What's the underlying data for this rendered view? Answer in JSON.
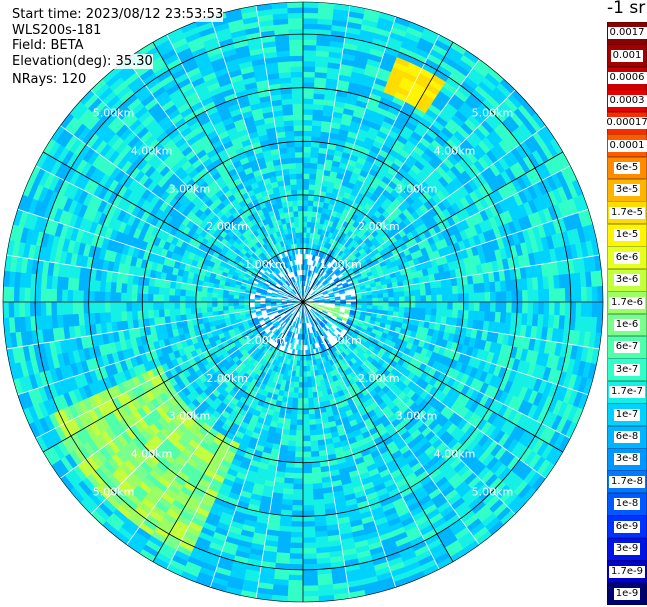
{
  "info": {
    "start_time": "Start time: 2023/08/12 23:53:53",
    "instrument": "WLS200s-181",
    "field": "Field: BETA",
    "elevation": "Elevation(deg): 35.30",
    "nrays": "NRays: 120"
  },
  "colorbar": {
    "unit_label": "-1 sr",
    "entries": [
      {
        "label": "0.0017",
        "color": "#8b0000"
      },
      {
        "label": "0.001",
        "color": "#a00000"
      },
      {
        "label": "0.0006",
        "color": "#c80000"
      },
      {
        "label": "0.0003",
        "color": "#e60000"
      },
      {
        "label": "0.00017",
        "color": "#ff2a00"
      },
      {
        "label": "0.0001",
        "color": "#ff5a00"
      },
      {
        "label": "6e-5",
        "color": "#ff8c00"
      },
      {
        "label": "3e-5",
        "color": "#ffb400"
      },
      {
        "label": "1.7e-5",
        "color": "#ffdc00"
      },
      {
        "label": "1e-5",
        "color": "#fff500"
      },
      {
        "label": "6e-6",
        "color": "#e6ff1e"
      },
      {
        "label": "3e-6",
        "color": "#c3ff3c"
      },
      {
        "label": "1.7e-6",
        "color": "#9bff64"
      },
      {
        "label": "1e-6",
        "color": "#78ff8c"
      },
      {
        "label": "6e-7",
        "color": "#50ffaa"
      },
      {
        "label": "3e-7",
        "color": "#32ffc8"
      },
      {
        "label": "1.7e-7",
        "color": "#14f0e6"
      },
      {
        "label": "1e-7",
        "color": "#00d2ff"
      },
      {
        "label": "6e-8",
        "color": "#00b4ff"
      },
      {
        "label": "3e-8",
        "color": "#0096ff"
      },
      {
        "label": "1.7e-8",
        "color": "#0078ff"
      },
      {
        "label": "1e-8",
        "color": "#005aff"
      },
      {
        "label": "6e-9",
        "color": "#0032ff"
      },
      {
        "label": "3e-9",
        "color": "#0014e6"
      },
      {
        "label": "1.7e-9",
        "color": "#0000c8"
      },
      {
        "label": "1e-9",
        "color": "#00006e"
      }
    ]
  },
  "chart_data": {
    "type": "heatmap",
    "projection": "polar (PPI scan)",
    "field": "BETA",
    "unit": "-1 sr",
    "nrays": 120,
    "range_ring_labels": [
      "1.00km",
      "2.00km",
      "3.00km",
      "4.00km",
      "5.00km"
    ],
    "range_rings_km": [
      1,
      2,
      3,
      4,
      5
    ],
    "max_range_km": 5.6,
    "spoke_angles_deg": [
      0,
      30,
      60,
      90,
      120,
      150,
      180,
      210,
      240,
      270,
      300,
      330
    ],
    "dominant_value_range": [
      "6e-8",
      "3e-7"
    ],
    "features": [
      {
        "region": "south-west, 3.00km-5.00km",
        "value_range": [
          "3e-7",
          "3e-6"
        ]
      },
      {
        "region": "north-north-east, ~4.5km",
        "value_range": [
          "1e-5",
          "1.7e-5"
        ]
      },
      {
        "region": "east, 0.1km-1.00km",
        "value_range": [
          "1.7e-6",
          "1e-5"
        ]
      }
    ]
  }
}
